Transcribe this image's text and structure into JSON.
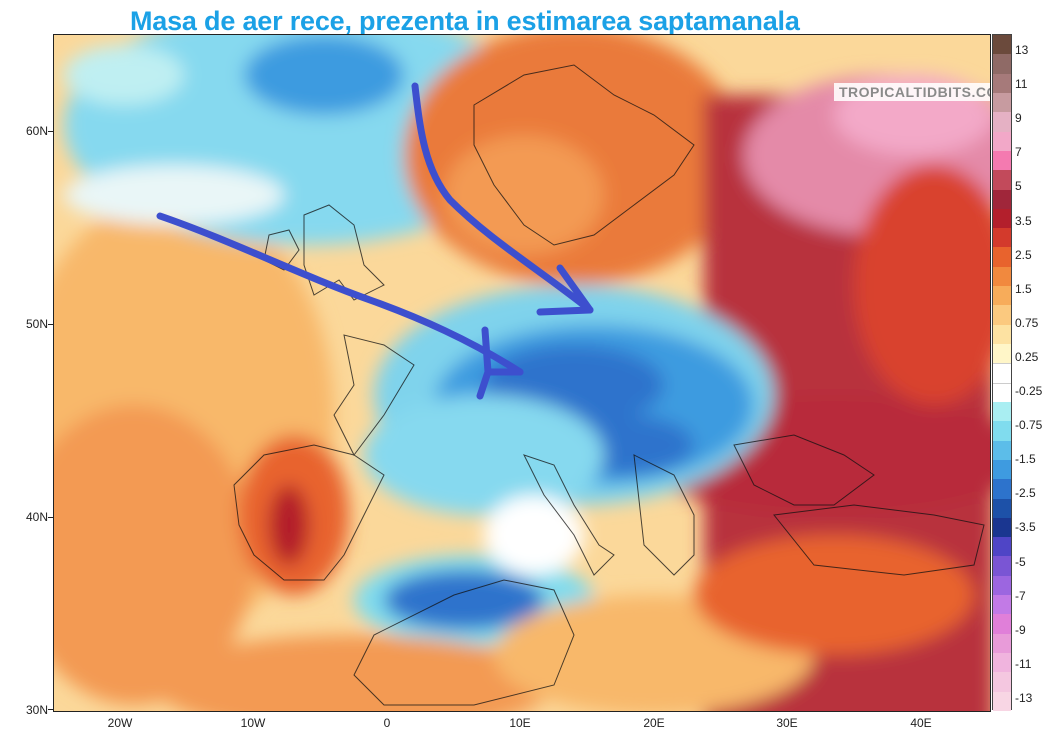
{
  "header": {
    "title": "Masa de aer rece, prezenta in estimarea saptamanala"
  },
  "watermark": {
    "text": "TROPICALTIDBITS.COM"
  },
  "map": {
    "lat_labels": [
      "60N",
      "50N",
      "40N",
      "30N"
    ],
    "lon_labels": [
      "20W",
      "10W",
      "0",
      "10E",
      "20E",
      "30E",
      "40E"
    ],
    "extent": {
      "lon_min": -25,
      "lon_max": 45,
      "lat_min": 30,
      "lat_max": 65
    }
  },
  "legend": {
    "labels": [
      "13",
      "11",
      "9",
      "7",
      "5",
      "3.5",
      "2.5",
      "1.5",
      "0.75",
      "0.25",
      "-0.25",
      "-0.75",
      "-1.5",
      "-2.5",
      "-3.5",
      "-5",
      "-7",
      "-9",
      "-11",
      "-13"
    ],
    "colors": [
      "#6b4a3c",
      "#8f6a66",
      "#a67a7a",
      "#c79ba0",
      "#e5b1c4",
      "#f2a8c8",
      "#f47ab0",
      "#c24a5b",
      "#a0263a",
      "#b31f2c",
      "#d33a2c",
      "#e8632d",
      "#f1893e",
      "#f7ac5a",
      "#fbc97f",
      "#fde2a2",
      "#fff6c8",
      "#ffffff",
      "#ffffff",
      "#a9eef2",
      "#80dcee",
      "#5cbde9",
      "#3e9be0",
      "#2d73cc",
      "#1d51a8",
      "#1a3690",
      "#4f45c6",
      "#7a55d4",
      "#9c66e0",
      "#c27ae6",
      "#e07fd9",
      "#e89bd9",
      "#f0b4de",
      "#f4c7e0",
      "#f8d6e4"
    ]
  },
  "annotations": [
    {
      "name": "arrow-atlantic-to-alps",
      "color": "#3d4fce"
    },
    {
      "name": "arrow-north-to-poland",
      "color": "#3d4fce"
    }
  ]
}
